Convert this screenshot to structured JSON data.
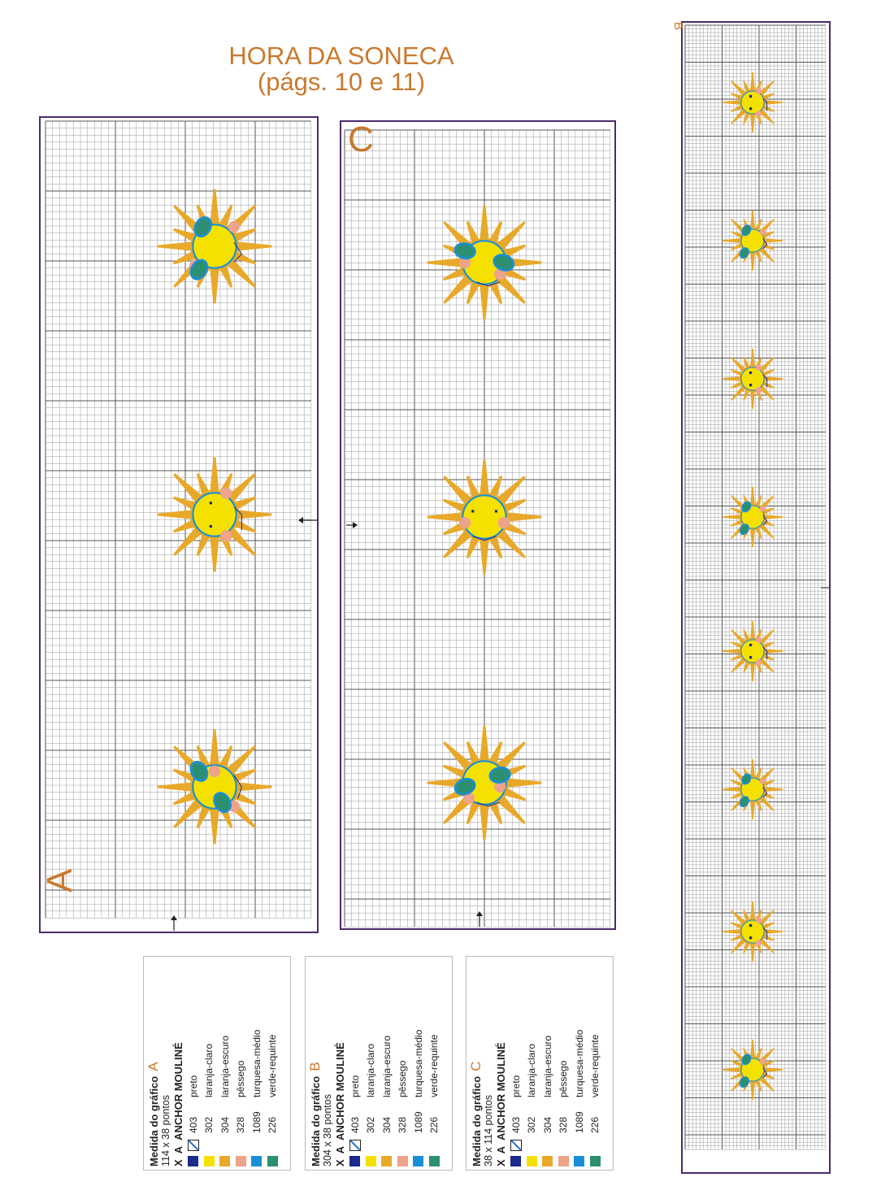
{
  "title": {
    "line1": "HORA DA SONECA",
    "line2": "(págs. 10 e 11)"
  },
  "charts": {
    "a": {
      "letter": "A"
    },
    "b": {
      "letter": "B"
    },
    "c": {
      "letter": "C"
    }
  },
  "colors": {
    "preto": "#1b2a8c",
    "laranja_claro": "#f5e100",
    "laranja_escuro": "#e8a92a",
    "pessego": "#eea38b",
    "turquesa_medio": "#1a8fd8",
    "verde_requinte": "#2c8f72",
    "letter": "#c9792e",
    "frame": "#4b2a6a"
  },
  "legends": [
    {
      "heading": "Medida do gráfico",
      "letter": "A",
      "size": "114  x 38 pontos",
      "col_x": "X",
      "col_a": "A",
      "brand": "ANCHOR MOULINÉ",
      "rows": [
        {
          "swatch": "#1b2a8c",
          "code": "403",
          "name": "preto",
          "backstitch": true
        },
        {
          "swatch": "#f5e100",
          "code": "302",
          "name": "laranja-claro"
        },
        {
          "swatch": "#e8a92a",
          "code": "304",
          "name": "laranja-escuro"
        },
        {
          "swatch": "#eea38b",
          "code": "328",
          "name": "pêssego"
        },
        {
          "swatch": "#1a8fd8",
          "code": "1089",
          "name": "turquesa-médio"
        },
        {
          "swatch": "#2c8f72",
          "code": "226",
          "name": "verde-requinte"
        }
      ]
    },
    {
      "heading": "Medida do gráfico",
      "letter": "B",
      "size": "304 x 38 pontos",
      "col_x": "X",
      "col_a": "A",
      "brand": "ANCHOR MOULINÉ",
      "rows": [
        {
          "swatch": "#1b2a8c",
          "code": "403",
          "name": "preto",
          "backstitch": true
        },
        {
          "swatch": "#f5e100",
          "code": "302",
          "name": "laranja-claro"
        },
        {
          "swatch": "#e8a92a",
          "code": "304",
          "name": "laranja-escuro"
        },
        {
          "swatch": "#eea38b",
          "code": "328",
          "name": "pêssego"
        },
        {
          "swatch": "#1a8fd8",
          "code": "1089",
          "name": "turquesa-médio"
        },
        {
          "swatch": "#2c8f72",
          "code": "226",
          "name": "verde-requinte"
        }
      ]
    },
    {
      "heading": "Medida do gráfico",
      "letter": "C",
      "size": "38 x 114 pontos",
      "col_x": "X",
      "col_a": "A",
      "brand": "ANCHOR MOULINÉ",
      "rows": [
        {
          "swatch": "#1b2a8c",
          "code": "403",
          "name": "preto",
          "backstitch": true
        },
        {
          "swatch": "#f5e100",
          "code": "302",
          "name": "laranja-claro"
        },
        {
          "swatch": "#e8a92a",
          "code": "304",
          "name": "laranja-escuro"
        },
        {
          "swatch": "#eea38b",
          "code": "328",
          "name": "pêssego"
        },
        {
          "swatch": "#1a8fd8",
          "code": "1089",
          "name": "turquesa-médio"
        },
        {
          "swatch": "#2c8f72",
          "code": "226",
          "name": "verde-requinte"
        }
      ]
    }
  ]
}
